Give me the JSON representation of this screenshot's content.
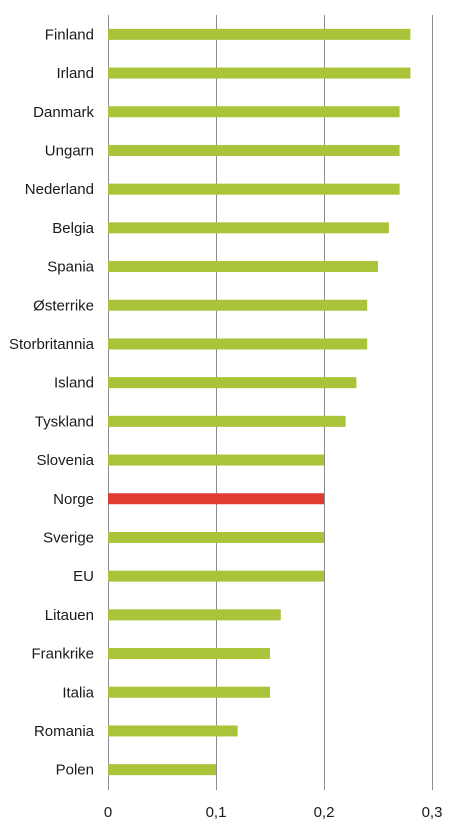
{
  "chart_data": {
    "type": "bar",
    "orientation": "horizontal",
    "categories": [
      "Finland",
      "Irland",
      "Danmark",
      "Ungarn",
      "Nederland",
      "Belgia",
      "Spania",
      "Østerrike",
      "Storbritannia",
      "Island",
      "Tyskland",
      "Slovenia",
      "Norge",
      "Sverige",
      "EU",
      "Litauen",
      "Frankrike",
      "Italia",
      "Romania",
      "Polen"
    ],
    "values": [
      0.28,
      0.28,
      0.27,
      0.27,
      0.27,
      0.26,
      0.25,
      0.24,
      0.24,
      0.23,
      0.22,
      0.2,
      0.2,
      0.2,
      0.2,
      0.16,
      0.15,
      0.15,
      0.12,
      0.1
    ],
    "highlight": "Norge",
    "xlim": [
      0,
      0.3
    ],
    "x_ticks": [
      0,
      0.1,
      0.2,
      0.3
    ],
    "x_tick_labels": [
      "0",
      "0,1",
      "0,2",
      "0,3"
    ],
    "grid": "vertical",
    "legend": "none",
    "colors": {
      "bar": "#aac43a",
      "highlight": "#e03c31",
      "grid": "#8c8c8c",
      "text": "#1a1a1a"
    }
  }
}
